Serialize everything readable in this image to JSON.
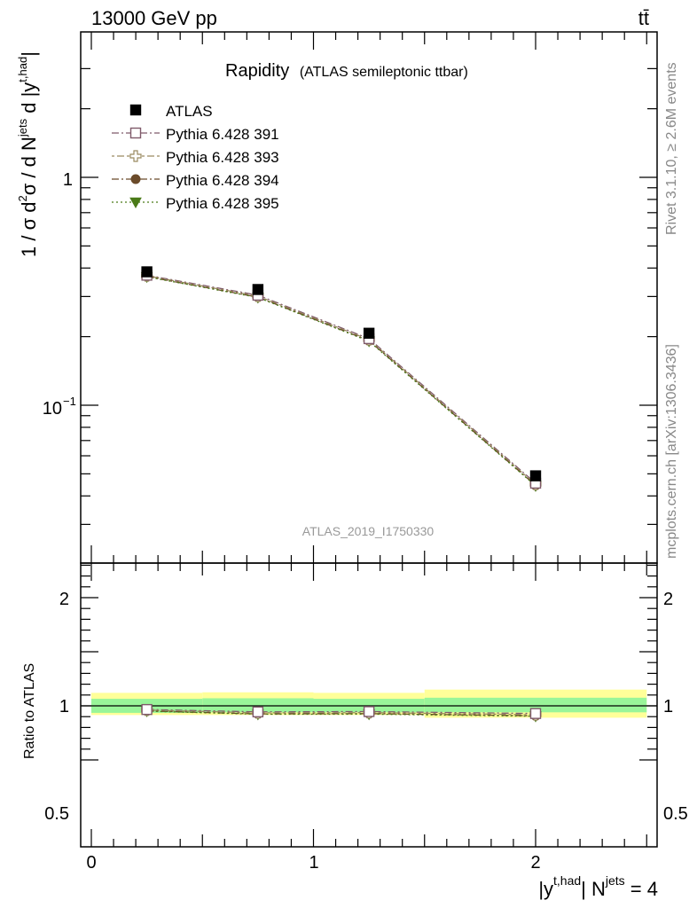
{
  "header": {
    "left": "13000 GeV pp",
    "right": "tt̄"
  },
  "side": {
    "rivet": "Rivet 3.1.10, ≥ 2.6M events",
    "mcplots": "mcplots.cern.ch [arXiv:1306.3436]"
  },
  "chart_data": [
    {
      "type": "scatter",
      "title": "Rapidity",
      "subtitle": "(ATLAS semileptonic ttbar)",
      "watermark": "ATLAS_2019_I1750330",
      "ylabel": "1 / σ d²σ / d N^jets d |y^t,had|",
      "y_scale": "log",
      "ylim": [
        0.03,
        3.6
      ],
      "xlim": [
        -0.05,
        2.55
      ],
      "y_ticks": [
        "1",
        "10^−1"
      ],
      "legend": [
        "ATLAS",
        "Pythia 6.428 391",
        "Pythia 6.428 393",
        "Pythia 6.428 394",
        "Pythia 6.428 395"
      ],
      "legend_position": "top-left",
      "x": [
        0.25,
        0.75,
        1.25,
        2.0
      ],
      "bins": [
        [
          0,
          0.5
        ],
        [
          0.5,
          1.0
        ],
        [
          1.0,
          1.5
        ],
        [
          1.5,
          2.5
        ]
      ],
      "series": [
        {
          "name": "ATLAS",
          "marker": "filled-square",
          "color": "#000000",
          "values": [
            0.385,
            0.322,
            0.207,
            0.049
          ]
        },
        {
          "name": "Pythia 6.428 391",
          "marker": "open-square",
          "color": "#7f5a6a",
          "line": "dash-dot",
          "values": [
            0.372,
            0.304,
            0.196,
            0.0455
          ]
        },
        {
          "name": "Pythia 6.428 393",
          "marker": "open-cross",
          "color": "#9a8a60",
          "line": "dot-dash",
          "values": [
            0.37,
            0.301,
            0.194,
            0.045
          ]
        },
        {
          "name": "Pythia 6.428 394",
          "marker": "filled-circle",
          "color": "#6b4b2a",
          "line": "dash-dot",
          "values": [
            0.367,
            0.298,
            0.192,
            0.0445
          ]
        },
        {
          "name": "Pythia 6.428 395",
          "marker": "filled-triangle-down",
          "color": "#4a7a18",
          "line": "dot-dot",
          "values": [
            0.366,
            0.297,
            0.191,
            0.0443
          ]
        }
      ]
    },
    {
      "type": "scatter",
      "ylabel": "Ratio to ATLAS",
      "xlabel": "|y^t,had| N^jets = 4",
      "ylim": [
        0.4,
        2.35
      ],
      "y_ticks": [
        "0.5",
        "1",
        "2"
      ],
      "x_ticks": [
        "0",
        "1",
        "2"
      ],
      "x": [
        0.25,
        0.75,
        1.25,
        2.0
      ],
      "bins": [
        [
          0,
          0.5
        ],
        [
          0.5,
          1.0
        ],
        [
          1.0,
          1.5
        ],
        [
          1.5,
          2.5
        ]
      ],
      "band_green": [
        [
          0.935,
          1.065
        ],
        [
          0.94,
          1.07
        ],
        [
          0.94,
          1.065
        ],
        [
          0.94,
          1.075
        ]
      ],
      "band_yellow": [
        [
          0.915,
          1.12
        ],
        [
          0.915,
          1.125
        ],
        [
          0.915,
          1.12
        ],
        [
          0.89,
          1.15
        ]
      ],
      "series": [
        {
          "name": "Pythia 6.428 391",
          "values": [
            0.966,
            0.944,
            0.947,
            0.929
          ]
        },
        {
          "name": "Pythia 6.428 393",
          "values": [
            0.961,
            0.935,
            0.937,
            0.918
          ]
        },
        {
          "name": "Pythia 6.428 394",
          "values": [
            0.953,
            0.925,
            0.928,
            0.908
          ]
        },
        {
          "name": "Pythia 6.428 395",
          "values": [
            0.951,
            0.922,
            0.923,
            0.904
          ]
        }
      ]
    }
  ]
}
